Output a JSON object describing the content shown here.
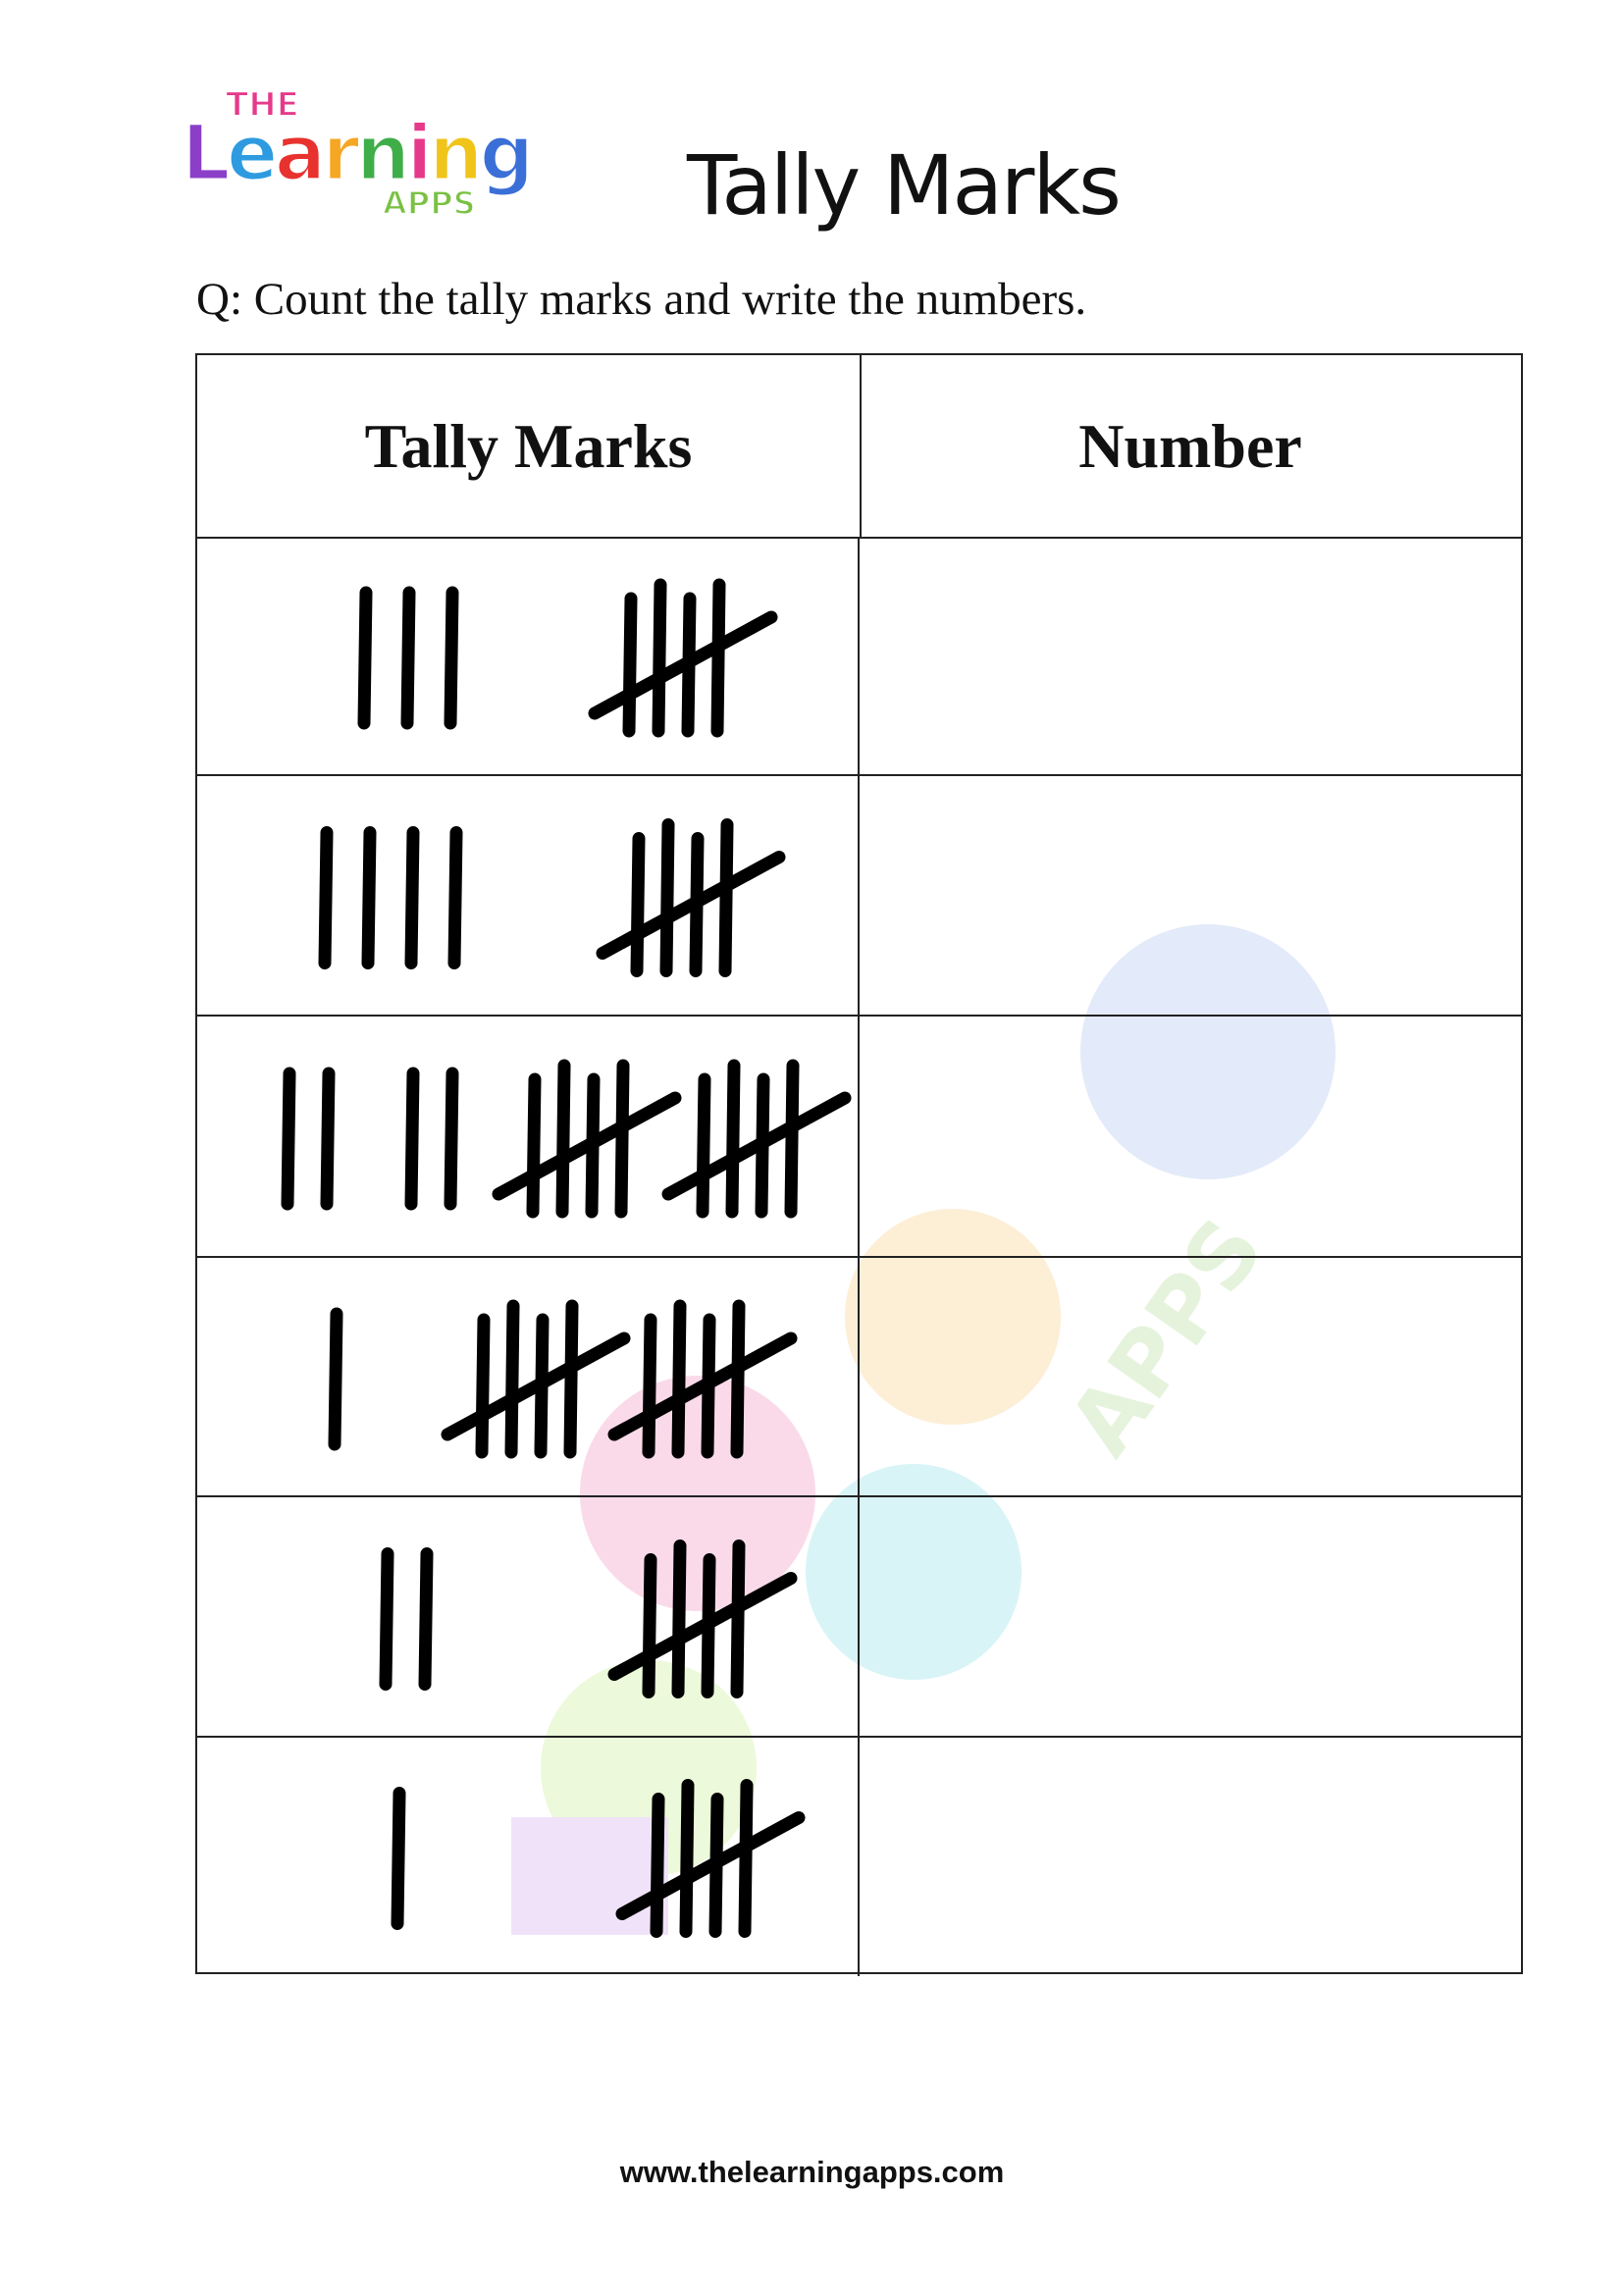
{
  "logo": {
    "text_top": "THE",
    "text_main": "Learning",
    "text_bottom": "APPS"
  },
  "title": "Tally Marks",
  "question": "Q: Count the tally marks and write the numbers.",
  "table": {
    "headers": [
      "Tally Marks",
      "Number"
    ],
    "rows": [
      {
        "tally_groups": [
          3,
          5
        ],
        "number": ""
      },
      {
        "tally_groups": [
          4,
          5
        ],
        "number": ""
      },
      {
        "tally_groups": [
          2,
          2,
          5,
          5
        ],
        "number": ""
      },
      {
        "tally_groups": [
          1,
          5,
          5
        ],
        "number": ""
      },
      {
        "tally_groups": [
          2,
          5
        ],
        "number": ""
      },
      {
        "tally_groups": [
          1,
          5
        ],
        "number": ""
      }
    ]
  },
  "footer": "www.thelearningapps.com"
}
